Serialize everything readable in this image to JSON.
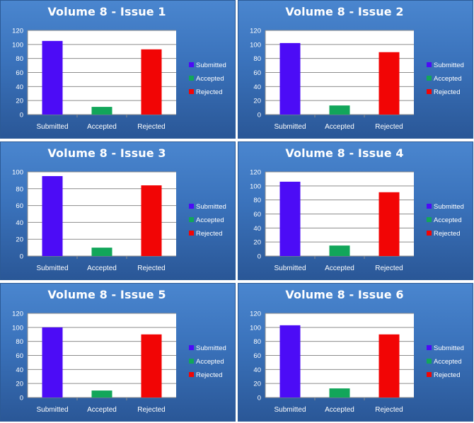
{
  "colors": {
    "Submitted": "#4c0cf6",
    "Accepted": "#12a65a",
    "Rejected": "#f20505"
  },
  "chart_data": [
    {
      "type": "bar",
      "title": "Volume 8 - Issue 1",
      "categories": [
        "Submitted",
        "Accepted",
        "Rejected"
      ],
      "values": [
        105,
        11,
        93
      ],
      "ylim": [
        0,
        120
      ],
      "yticks": [
        0,
        20,
        40,
        60,
        80,
        100,
        120
      ],
      "legend": [
        "Submitted",
        "Accepted",
        "Rejected"
      ],
      "legend_position": "right",
      "grid": true
    },
    {
      "type": "bar",
      "title": "Volume 8 - Issue 2",
      "categories": [
        "Submitted",
        "Accepted",
        "Rejected"
      ],
      "values": [
        102,
        13,
        89
      ],
      "ylim": [
        0,
        120
      ],
      "yticks": [
        0,
        20,
        40,
        60,
        80,
        100,
        120
      ],
      "legend": [
        "Submitted",
        "Accepted",
        "Rejected"
      ],
      "legend_position": "right",
      "grid": true
    },
    {
      "type": "bar",
      "title": "Volume 8 - Issue 3",
      "categories": [
        "Submitted",
        "Accepted",
        "Rejected"
      ],
      "values": [
        95,
        10,
        84
      ],
      "ylim": [
        0,
        100
      ],
      "yticks": [
        0,
        20,
        40,
        60,
        80,
        100
      ],
      "legend": [
        "Submitted",
        "Accepted",
        "Rejected"
      ],
      "legend_position": "right",
      "grid": true
    },
    {
      "type": "bar",
      "title": "Volume 8 - Issue 4",
      "categories": [
        "Submitted",
        "Accepted",
        "Rejected"
      ],
      "values": [
        106,
        15,
        91
      ],
      "ylim": [
        0,
        120
      ],
      "yticks": [
        0,
        20,
        40,
        60,
        80,
        100,
        120
      ],
      "legend": [
        "Submitted",
        "Accepted",
        "Rejected"
      ],
      "legend_position": "right",
      "grid": true
    },
    {
      "type": "bar",
      "title": "Volume 8 - Issue 5",
      "categories": [
        "Submitted",
        "Accepted",
        "Rejected"
      ],
      "values": [
        100,
        10,
        90
      ],
      "ylim": [
        0,
        120
      ],
      "yticks": [
        0,
        20,
        40,
        60,
        80,
        100,
        120
      ],
      "legend": [
        "Submitted",
        "Accepted",
        "Rejected"
      ],
      "legend_position": "right",
      "grid": true
    },
    {
      "type": "bar",
      "title": "Volume 8 - Issue 6",
      "categories": [
        "Submitted",
        "Accepted",
        "Rejected"
      ],
      "values": [
        103,
        13,
        90
      ],
      "ylim": [
        0,
        120
      ],
      "yticks": [
        0,
        20,
        40,
        60,
        80,
        100,
        120
      ],
      "legend": [
        "Submitted",
        "Accepted",
        "Rejected"
      ],
      "legend_position": "right",
      "grid": true
    }
  ]
}
